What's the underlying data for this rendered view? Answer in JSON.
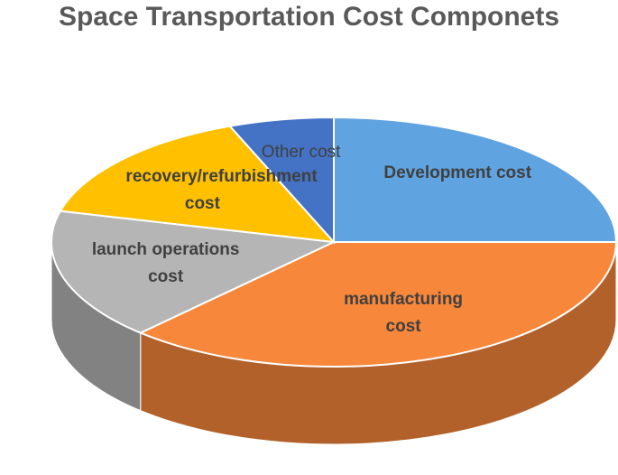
{
  "chart_data": {
    "type": "pie",
    "title": "Space Transportation Cost Componets",
    "categories": [
      "Development cost",
      "manufacturing cost",
      "launch operations cost",
      "recovery/refurbishment cost",
      "Other cost"
    ],
    "values": [
      25,
      37,
      17,
      15,
      6
    ],
    "colors": [
      "#5fa3e0",
      "#f7873a",
      "#b5b5b5",
      "#ffc000",
      "#4472c4"
    ]
  }
}
